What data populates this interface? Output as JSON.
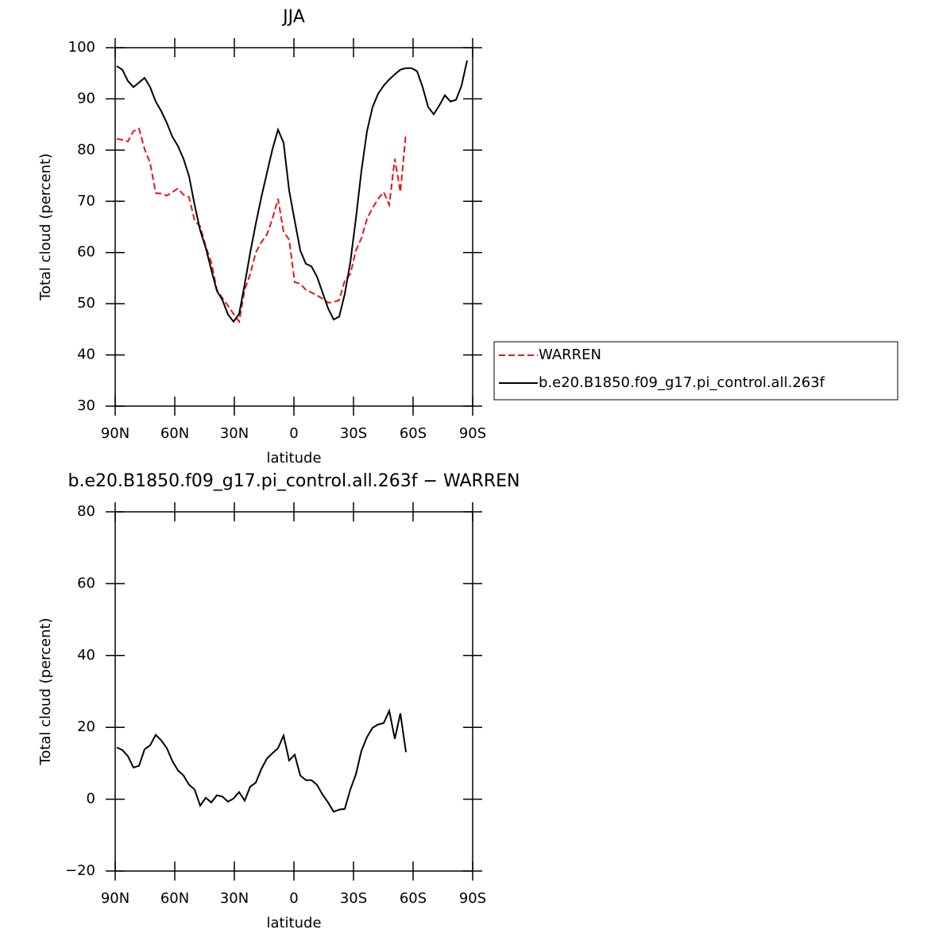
{
  "chart_data": [
    {
      "type": "line",
      "title": "JJA",
      "x_label": "latitude",
      "y_label": "Total cloud (percent)",
      "x": [
        89.2,
        86.4,
        83.6,
        80.8,
        78,
        75.2,
        72.4,
        69.6,
        66.8,
        64,
        61.2,
        58.4,
        55.6,
        52.8,
        50,
        47.2,
        44.4,
        41.6,
        38.8,
        36,
        33.2,
        30.4,
        27.6,
        24.8,
        22,
        19.2,
        16.4,
        13.6,
        10.8,
        8,
        5.2,
        2.4,
        -0.4,
        -3.2,
        -6,
        -8.8,
        -11.6,
        -14.4,
        -17.2,
        -20,
        -22.8,
        -25.6,
        -28.4,
        -31.2,
        -34,
        -36.8,
        -39.6,
        -42.4,
        -45.2,
        -48,
        -50.8,
        -53.6,
        -56.4,
        -59.2,
        -62,
        -64.8,
        -67.6,
        -70.4,
        -73.2,
        -76,
        -78.8,
        -81.6,
        -84.4,
        -87.2
      ],
      "series": [
        {
          "name": "WARREN",
          "color": "#e8141c",
          "line_style": "dashed",
          "values": [
            82.2,
            82.0,
            81.7,
            83.7,
            84.2,
            80.2,
            77.5,
            71.6,
            71.5,
            71.1,
            71.8,
            72.5,
            71.3,
            70.8,
            66.2,
            65.1,
            61.2,
            58.1,
            52.7,
            51.1,
            49.6,
            48,
            46.5,
            52.7,
            55.8,
            60,
            62,
            63.5,
            66.6,
            70.5,
            64,
            62.5,
            54.2,
            53.9,
            52.7,
            52.2,
            51.6,
            51,
            50.2,
            50.3,
            50.7,
            54.5,
            55.8,
            60.4,
            62.8,
            66.6,
            68.7,
            70.5,
            71.8,
            69.3,
            78.3,
            71.8,
            83.3,
            null,
            null,
            null,
            null,
            null,
            null,
            null,
            null,
            null,
            null,
            null
          ]
        },
        {
          "name": "b.e20.B1850.f09_g17.pi_control.all.263f",
          "color": "#000000",
          "line_style": "solid",
          "values": [
            96.4,
            95.7,
            93.5,
            92.3,
            93.2,
            94.1,
            92.3,
            89.5,
            87.6,
            85.3,
            82.6,
            80.8,
            78.3,
            74.9,
            69.3,
            64.3,
            60.9,
            56.6,
            52.5,
            50.7,
            47.9,
            46.5,
            48,
            53.8,
            60,
            65.6,
            70.8,
            75.5,
            80.2,
            84.0,
            81.4,
            72.1,
            66.2,
            60.4,
            57.8,
            57.3,
            55.3,
            52.2,
            49.1,
            46.9,
            47.5,
            51.9,
            58.1,
            66.6,
            76,
            83.7,
            88.4,
            91.0,
            92.6,
            93.8,
            94.8,
            95.7,
            96.0,
            96.0,
            95.4,
            92.3,
            88.4,
            87.0,
            88.7,
            90.7,
            89.5,
            89.8,
            92.6,
            97.5
          ]
        }
      ],
      "xlim": [
        90,
        -90
      ],
      "xticks": [
        {
          "value": 90,
          "label": "90N"
        },
        {
          "value": 60,
          "label": "60N"
        },
        {
          "value": 30,
          "label": "30N"
        },
        0,
        {
          "value": -30,
          "label": "30S"
        },
        {
          "value": -60,
          "label": "60S"
        },
        {
          "value": -90,
          "label": "90S"
        }
      ],
      "ylim": [
        30,
        100
      ],
      "yticks": [
        30,
        40,
        50,
        60,
        70,
        80,
        90,
        100
      ],
      "legend": "outside-right"
    },
    {
      "type": "line",
      "title": "b.e20.B1850.f09_g17.pi_control.all.263f − WARREN",
      "x_label": "latitude",
      "y_label": "Total cloud (percent)",
      "x": [
        89.2,
        86.4,
        83.6,
        80.8,
        78,
        75.2,
        72.4,
        69.6,
        66.8,
        64,
        61.2,
        58.4,
        55.6,
        52.8,
        50,
        47.2,
        44.4,
        41.6,
        38.8,
        36,
        33.2,
        30.4,
        27.6,
        24.8,
        22,
        19.2,
        16.4,
        13.6,
        10.8,
        8,
        5.2,
        2.4,
        -0.4,
        -3.2,
        -6,
        -8.8,
        -11.6,
        -14.4,
        -17.2,
        -20,
        -22.8,
        -25.6,
        -28.4,
        -31.2,
        -34,
        -36.8,
        -39.6,
        -42.4,
        -45.2,
        -48,
        -50.8,
        -53.6,
        -56.4,
        -59.2,
        -62,
        -64.8,
        -67.6,
        -70.4,
        -73.2,
        -76,
        -78.8,
        -81.6,
        -84.4,
        -87.2
      ],
      "series": [
        {
          "color": "#000000",
          "line_style": "solid",
          "values": [
            14.4,
            13.7,
            12.0,
            8.8,
            9.3,
            13.9,
            15.0,
            17.9,
            16.4,
            14.2,
            10.6,
            8.0,
            6.6,
            4.0,
            2.7,
            -1.8,
            0.4,
            -0.9,
            1.1,
            0.7,
            -0.7,
            0.2,
            2.0,
            -0.4,
            3.5,
            4.6,
            8.4,
            11.3,
            12.8,
            14.2,
            17.7,
            10.8,
            12.4,
            6.6,
            5.3,
            5.3,
            4.0,
            1.3,
            -0.9,
            -3.5,
            -2.9,
            -2.7,
            2.7,
            6.9,
            13.5,
            17.3,
            19.9,
            20.8,
            21.2,
            24.6,
            16.8,
            23.9,
            13.1,
            null,
            null,
            null,
            null,
            null,
            null,
            null,
            null,
            null,
            null,
            null
          ]
        }
      ],
      "xlim": [
        90,
        -90
      ],
      "xticks": [
        {
          "value": 90,
          "label": "90N"
        },
        {
          "value": 60,
          "label": "60N"
        },
        {
          "value": 30,
          "label": "30N"
        },
        0,
        {
          "value": -30,
          "label": "30S"
        },
        {
          "value": -60,
          "label": "60S"
        },
        {
          "value": -90,
          "label": "90S"
        }
      ],
      "ylim": [
        -20,
        80
      ],
      "yticks": [
        {
          "value": -20,
          "label": "−20"
        },
        0,
        20,
        40,
        60,
        80
      ]
    }
  ]
}
